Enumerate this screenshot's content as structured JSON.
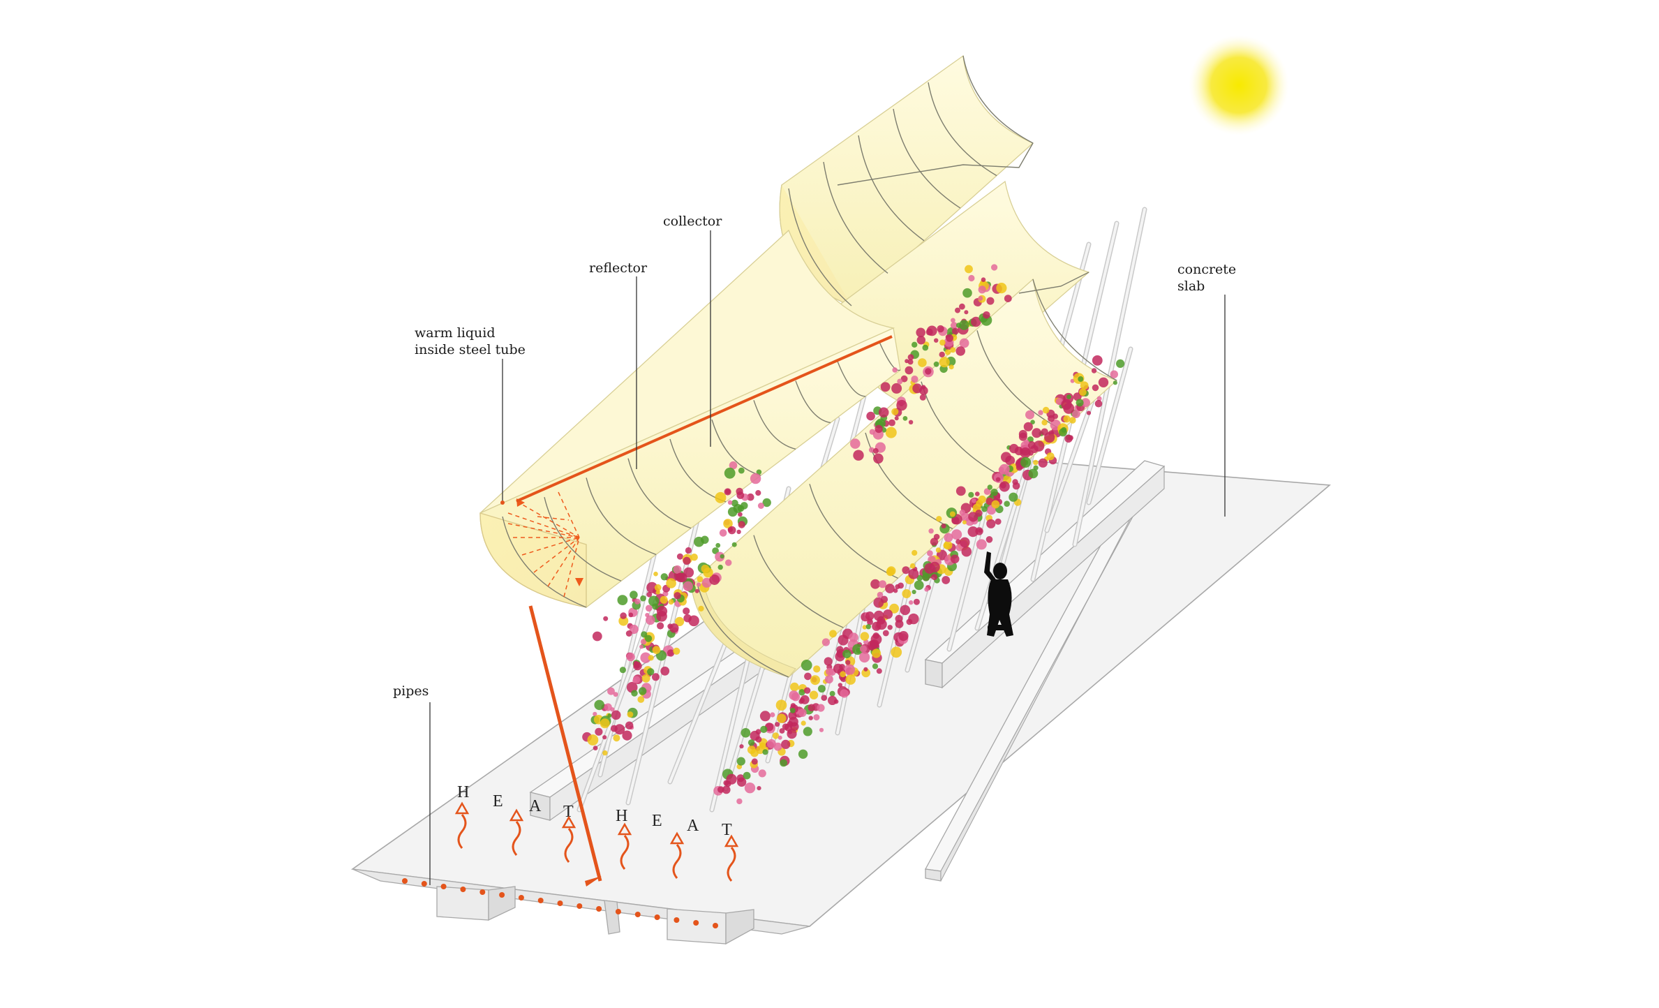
{
  "labels": {
    "collector": "collector",
    "reflector": "reflector",
    "warm_liquid_line1": "warm liquid",
    "warm_liquid_line2": "inside steel tube",
    "concrete_line1": "concrete",
    "concrete_line2": "slab",
    "pipes": "pipes"
  },
  "heat_letters": [
    "H",
    "E",
    "A",
    "T",
    "H",
    "E",
    "A",
    "T"
  ],
  "colors": {
    "sun": "#f6e400",
    "reflector_fill": "#fbf6c8",
    "reflector_edge": "#e8e0a4",
    "tube": "#e4541b",
    "slab_top": "#f4f4f4",
    "slab_edge": "#b0b0b0",
    "flowers": "#c2285d",
    "flowers_light": "#e46a9a",
    "leaves": "#4d9b29",
    "yellow_blooms": "#f0c419",
    "figure": "#0d0d0d"
  },
  "icons": [
    "sun-icon",
    "person-silhouette-icon",
    "heat-arrow-icon",
    "pipe-dot-icon"
  ]
}
